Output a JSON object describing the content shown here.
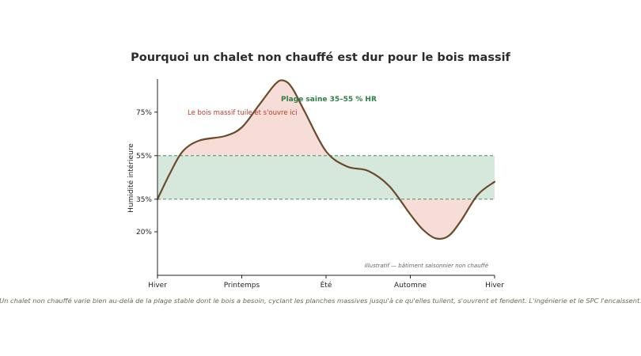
{
  "chart_data": {
    "type": "line",
    "title": "Pourquoi un chalet non chauffé est dur pour le bois massif",
    "ylabel": "Humidité intérieure",
    "xlabel": "",
    "x_ticks": [
      "Hiver",
      "Printemps",
      "Été",
      "Automne",
      "Hiver"
    ],
    "y_ticks": [
      "20%",
      "35%",
      "55%",
      "75%"
    ],
    "y_tick_values": [
      20,
      35,
      55,
      75
    ],
    "xlim": [
      0,
      4
    ],
    "ylim": [
      0,
      90
    ],
    "grid": false,
    "band": {
      "low": 35,
      "high": 55,
      "label": "Plage saine 35–55 % HR"
    },
    "annotations": {
      "wood": "Le bois massif tuile et s'ouvre ici",
      "note": "Illustratif — bâtiment saisonnier non chauffé"
    },
    "caption": "Un chalet non chauffé varie bien au-delà de la plage stable dont le bois a besoin, cyclant les planches massives jusqu'à ce qu'elles tuilent, s'ouvrent et fendent. L'ingénierie et le SPC l'encaissent.",
    "series": [
      {
        "x": [
          0,
          0.15,
          0.3,
          0.5,
          0.8,
          1.0,
          1.2,
          1.4,
          1.5,
          1.6,
          1.75,
          2.0,
          2.25,
          2.5,
          2.75,
          3.0,
          3.15,
          3.3,
          3.45,
          3.6,
          3.8,
          4.0
        ],
        "values": [
          35,
          47,
          57,
          62,
          64,
          68,
          78,
          88,
          89.5,
          86,
          75,
          57,
          50,
          48,
          41,
          28,
          21,
          17,
          18,
          25,
          37,
          43
        ]
      }
    ],
    "colors": {
      "line": "#6b4a2b",
      "band_fill": "#d6e8dc",
      "band_line": "#4a8a64",
      "outside_fill": "#f6ddd7",
      "band_text": "#2e7d44",
      "wood_text": "#c0392b"
    }
  }
}
